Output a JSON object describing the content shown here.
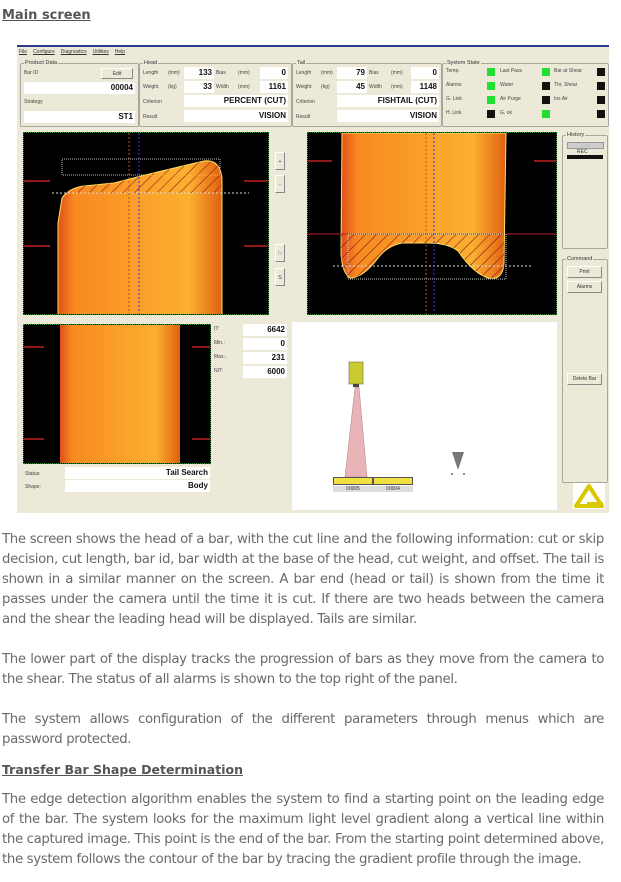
{
  "title": "Main screen",
  "app": {
    "menu": [
      "File",
      "Configure",
      "Diagnostics",
      "Utilities",
      "Help"
    ],
    "product": {
      "legend": "Product Data",
      "bar_id_label": "Bar ID",
      "edit": "Edit",
      "bar_id": "00004",
      "strategy_label": "Strategy",
      "strategy": "ST1"
    },
    "head": {
      "legend": "Head",
      "length_label": "Length",
      "length_unit": "(mm)",
      "length": "133",
      "bias_label": "Bias",
      "bias_unit": "(mm)",
      "bias": "0",
      "weight_label": "Weight",
      "weight_unit": "(kg)",
      "weight": "33",
      "width_label": "Width",
      "width_unit": "(mm)",
      "width": "1161",
      "criterion_label": "Criterion",
      "criterion": "PERCENT (CUT)",
      "result_label": "Result",
      "result": "VISION"
    },
    "tail": {
      "legend": "Tail",
      "length_label": "Length",
      "length_unit": "(mm)",
      "length": "79",
      "bias_label": "Bias",
      "bias_unit": "(mm)",
      "bias": "0",
      "weight_label": "Weight",
      "weight_unit": "(kg)",
      "weight": "45",
      "width_label": "Width",
      "width_unit": "(mm)",
      "width": "1148",
      "criterion_label": "Criterion",
      "criterion": "FISHTAIL (CUT)",
      "result_label": "Result",
      "result": "VISION"
    },
    "system": {
      "legend": "System State",
      "indicators": [
        {
          "label": "Temp.",
          "on": true
        },
        {
          "label": "Last Pass",
          "on": true
        },
        {
          "label": "Bar at Shear",
          "on": false
        },
        {
          "label": "Alarms",
          "on": true
        },
        {
          "label": "Water",
          "on": false
        },
        {
          "label": "Thr. Shear",
          "on": false
        },
        {
          "label": "G. Link",
          "on": true
        },
        {
          "label": "Air Purge",
          "on": false
        },
        {
          "label": "Ins Air",
          "on": false
        },
        {
          "label": "H. Link",
          "on": false
        },
        {
          "label": "G. ok",
          "on": true
        },
        {
          "label": "",
          "on": false
        }
      ],
      "on_color": "#20e030",
      "off_color": "#111111"
    },
    "side_buttons": [
      "+",
      "-",
      "N",
      "S"
    ],
    "history": {
      "legend": "History",
      "idle": "IDLE",
      "rec": "REC"
    },
    "command": {
      "legend": "Command",
      "print": "Print",
      "alarms": "Alarms",
      "delete_bar": "Delete Bar"
    },
    "stats": [
      {
        "label": "IT:",
        "value": "6642"
      },
      {
        "label": "Min.:",
        "value": "0"
      },
      {
        "label": "Max.:",
        "value": "231"
      },
      {
        "label": "NIT:",
        "value": "6000"
      }
    ],
    "status_label": "Status:",
    "status": "Tail Search",
    "shape_label": "Shape:",
    "shape": "Body",
    "tracking": {
      "bars": [
        "00005",
        "00004"
      ]
    }
  },
  "paragraphs": [
    "The screen shows the head of a bar, with the cut line and the following information: cut or skip decision, cut length, bar id, bar width at the base of the head, cut weight, and offset. The tail is shown in a similar manner on the screen. A bar end (head or tail) is shown from the time it passes under the camera until the time it is cut. If there are two heads between the camera and the shear the leading head will be displayed. Tails are similar.",
    "The lower part of the display tracks the progression of bars as they move from the camera to the shear. The status of all alarms is shown to the top right of the panel.",
    "The system allows configuration of the different parameters through menus which are password protected."
  ],
  "heading2": "Transfer Bar Shape Determination",
  "paragraph4": "The edge detection algorithm enables the system to find a starting point on the leading edge of the bar. The system looks for the maximum light level gradient along a vertical line within the captured image. This point is the end of the bar. From the starting point determined above, the system follows the contour of the bar by tracing the gradient profile through the image."
}
